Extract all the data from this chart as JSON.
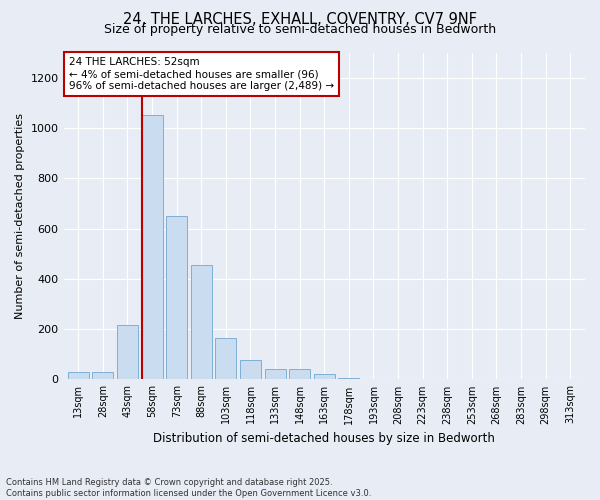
{
  "title_line1": "24, THE LARCHES, EXHALL, COVENTRY, CV7 9NF",
  "title_line2": "Size of property relative to semi-detached houses in Bedworth",
  "xlabel": "Distribution of semi-detached houses by size in Bedworth",
  "ylabel": "Number of semi-detached properties",
  "categories": [
    "13sqm",
    "28sqm",
    "43sqm",
    "58sqm",
    "73sqm",
    "88sqm",
    "103sqm",
    "118sqm",
    "133sqm",
    "148sqm",
    "163sqm",
    "178sqm",
    "193sqm",
    "208sqm",
    "223sqm",
    "238sqm",
    "253sqm",
    "268sqm",
    "283sqm",
    "298sqm",
    "313sqm"
  ],
  "values": [
    28,
    30,
    215,
    1050,
    648,
    455,
    165,
    78,
    40,
    40,
    20,
    7,
    0,
    0,
    0,
    0,
    0,
    0,
    0,
    0,
    0
  ],
  "bar_color": "#c9dcf0",
  "bar_edge_color": "#7fafd4",
  "vline_color": "#bb0000",
  "vline_pos": 2.57,
  "annotation_text": "24 THE LARCHES: 52sqm\n← 4% of semi-detached houses are smaller (96)\n96% of semi-detached houses are larger (2,489) →",
  "annotation_box_facecolor": "#ffffff",
  "annotation_box_edgecolor": "#bb0000",
  "footnote": "Contains HM Land Registry data © Crown copyright and database right 2025.\nContains public sector information licensed under the Open Government Licence v3.0.",
  "ylim": [
    0,
    1300
  ],
  "yticks": [
    0,
    200,
    400,
    600,
    800,
    1000,
    1200
  ],
  "background_color": "#e8edf5",
  "plot_background": "#e8edf5",
  "grid_color": "#ffffff",
  "title_fontsize": 10.5,
  "subtitle_fontsize": 9
}
